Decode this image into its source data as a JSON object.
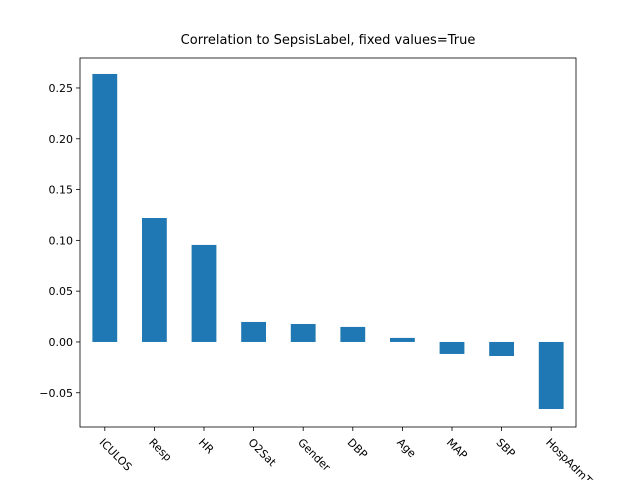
{
  "chart_data": {
    "type": "bar",
    "title": "Correlation to SepsisLabel, fixed values=True",
    "categories": [
      "ICULOS",
      "Resp",
      "HR",
      "O2Sat",
      "Gender",
      "DBP",
      "Age",
      "MAP",
      "SBP",
      "HospAdmTime"
    ],
    "values": [
      0.2638,
      0.122,
      0.0955,
      0.0197,
      0.0177,
      0.0148,
      0.004,
      -0.0118,
      -0.0138,
      -0.066
    ],
    "color": "#1f77b4",
    "ylim": [
      -0.0837,
      0.2795
    ],
    "yticks": [
      {
        "value": -0.05,
        "label": "−0.05"
      },
      {
        "value": 0,
        "label": "0.00"
      },
      {
        "value": 0.05,
        "label": "0.05"
      },
      {
        "value": 0.1,
        "label": "0.10"
      },
      {
        "value": 0.15,
        "label": "0.15"
      },
      {
        "value": 0.2,
        "label": "0.20"
      },
      {
        "value": 0.25,
        "label": "0.25"
      }
    ],
    "grid": false
  }
}
